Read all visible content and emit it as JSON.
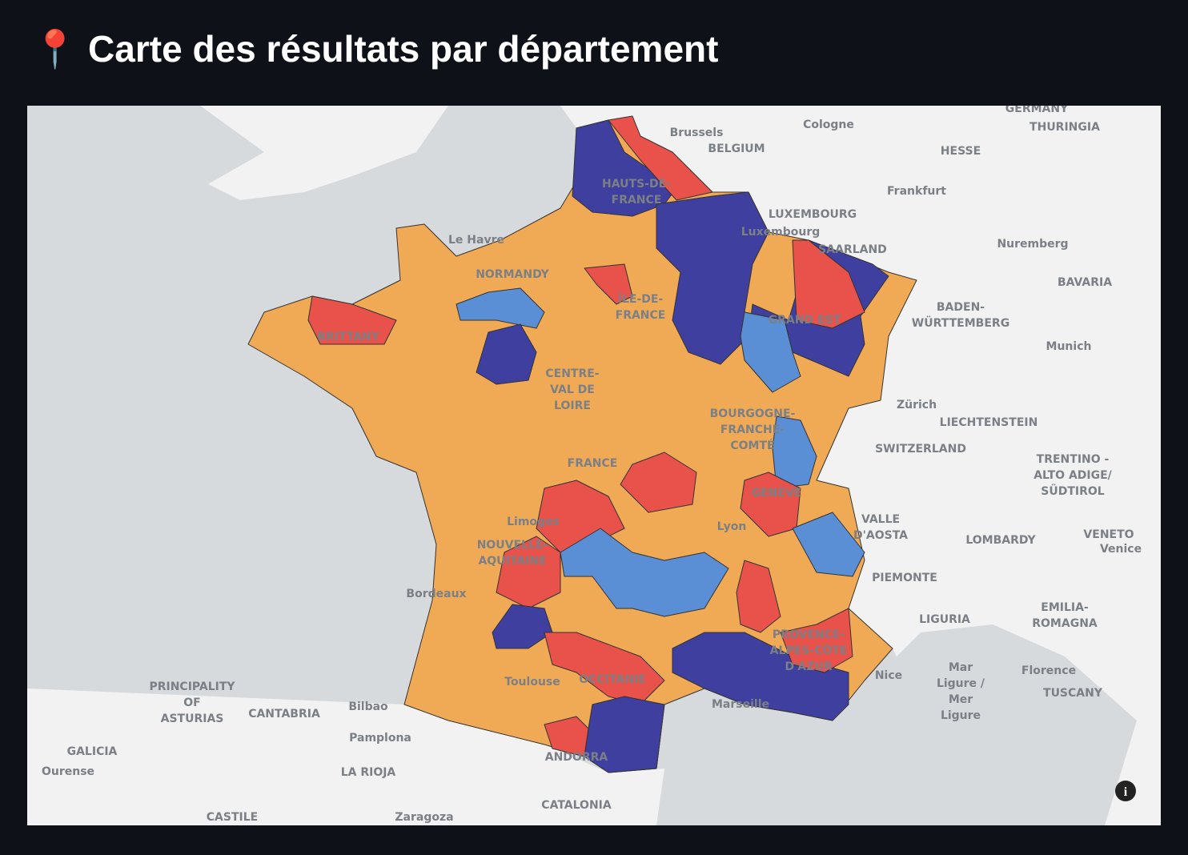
{
  "header": {
    "title": "📍 Carte des résultats par département"
  },
  "map": {
    "labels": [
      [
        "Brussels"
      ],
      [
        "BELGIUM"
      ],
      [
        "Cologne"
      ],
      [
        "GERMANY"
      ],
      [
        "THURINGIA"
      ],
      [
        "HESSE"
      ],
      [
        "Frankfurt"
      ],
      [
        "LUXEMBOURG"
      ],
      [
        "Luxembourg"
      ],
      [
        "SAARLAND"
      ],
      [
        "Nuremberg"
      ],
      [
        "BAVARIA"
      ],
      [
        "BADEN-",
        "WÜRTTEMBERG"
      ],
      [
        "Munich"
      ],
      [
        "Zürich"
      ],
      [
        "LIECHTENSTEIN"
      ],
      [
        "SWITZERLAND"
      ],
      [
        "TRENTINO -",
        "ALTO ADIGE/",
        "SÜDTIROL"
      ],
      [
        "VALLE",
        "D'AOSTA"
      ],
      [
        "LOMBARDY"
      ],
      [
        "VENETO"
      ],
      [
        "Venice"
      ],
      [
        "PIEMONTE"
      ],
      [
        "LIGURIA"
      ],
      [
        "EMILIA-",
        "ROMAGNA"
      ],
      [
        "Mar",
        "Ligure /",
        "Mer",
        "Ligure"
      ],
      [
        "Florence"
      ],
      [
        "TUSCANY"
      ],
      [
        "Nice"
      ],
      [
        "Marseille"
      ],
      [
        "Toulouse"
      ],
      [
        "OCCITANIE"
      ],
      [
        "ANDORRA"
      ],
      [
        "CATALONIA"
      ],
      [
        "LA RIOJA"
      ],
      [
        "Pamplona"
      ],
      [
        "Bilbao"
      ],
      [
        "CANTABRIA"
      ],
      [
        "PRINCIPALITY",
        "OF",
        "ASTURIAS"
      ],
      [
        "GALICIA"
      ],
      [
        "Ourense"
      ],
      [
        "CASTILE"
      ],
      [
        "Zaragoza"
      ],
      [
        "Bordeaux"
      ],
      [
        "NOUVELLE-",
        "AQUITAINE"
      ],
      [
        "Limoges"
      ],
      [
        "Lyon"
      ],
      [
        "GENÈVE"
      ],
      [
        "Le Havre"
      ],
      [
        "NORMANDY"
      ],
      [
        "BRITTANY"
      ],
      [
        "HAUTS-DE-",
        "FRANCE"
      ],
      [
        "ÎLE-DE-",
        "FRANCE"
      ],
      [
        "GRAND EST"
      ],
      [
        "CENTRE-",
        "VAL DE",
        "LOIRE"
      ],
      [
        "BOURGOGNE-",
        "FRANCHE-",
        "COMTÉ"
      ],
      [
        "FRANCE"
      ],
      [
        "PROVENCE-",
        "ALPES-CÔTE",
        "D'AZUR"
      ]
    ]
  }
}
